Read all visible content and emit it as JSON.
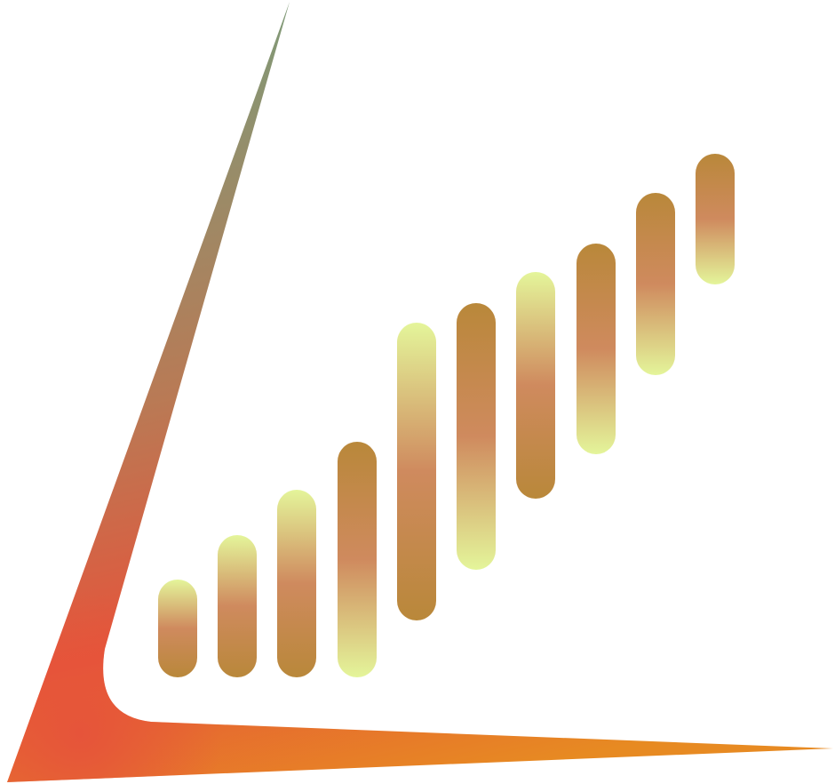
{
  "logo": {
    "name": "growth-bars-logo",
    "frame_colors": [
      "#7f9a78",
      "#b97a55",
      "#e6543a",
      "#e78a22"
    ],
    "bar_colors": {
      "dark": "#b9883a",
      "mid": "#cf8a5e",
      "light": "#e4f59a"
    },
    "bars": [
      {
        "top": "light",
        "bottom": "dark"
      },
      {
        "top": "light",
        "bottom": "dark"
      },
      {
        "top": "light",
        "bottom": "dark"
      },
      {
        "top": "dark",
        "bottom": "light"
      },
      {
        "top": "light",
        "bottom": "dark"
      },
      {
        "top": "dark",
        "bottom": "light"
      },
      {
        "top": "light",
        "bottom": "dark"
      },
      {
        "top": "dark",
        "bottom": "light"
      },
      {
        "top": "dark",
        "bottom": "light"
      },
      {
        "top": "dark",
        "bottom": "light"
      }
    ]
  }
}
